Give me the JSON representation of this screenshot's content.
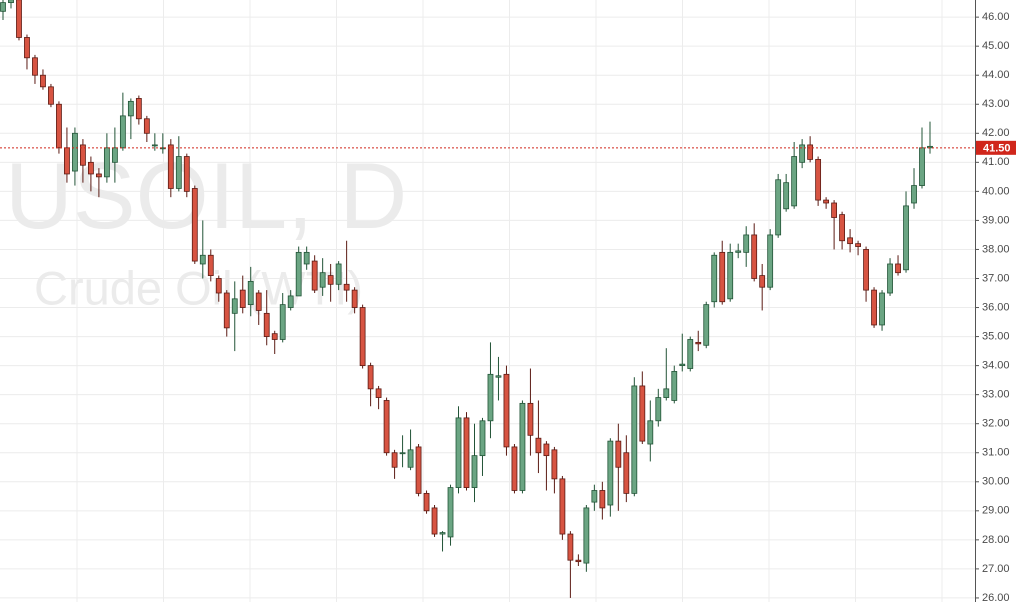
{
  "chart_data": {
    "type": "candlestick",
    "watermark": "USOIL, D",
    "watermark_subtitle": "Crude Oil (WTI)",
    "up_color": "#6ba583",
    "up_border": "#225437",
    "down_color": "#d75442",
    "down_border": "#5b1a13",
    "grid": true,
    "ylim": [
      25.86,
      46.59
    ],
    "yticks": [
      {
        "value": 26,
        "label": "26.00"
      },
      {
        "value": 27,
        "label": "27.00"
      },
      {
        "value": 28,
        "label": "28.00"
      },
      {
        "value": 29,
        "label": "29.00"
      },
      {
        "value": 30,
        "label": "30.00"
      },
      {
        "value": 31,
        "label": "31.00"
      },
      {
        "value": 32,
        "label": "32.00"
      },
      {
        "value": 33,
        "label": "33.00"
      },
      {
        "value": 34,
        "label": "34.00"
      },
      {
        "value": 35,
        "label": "35.00"
      },
      {
        "value": 36,
        "label": "36.00"
      },
      {
        "value": 37,
        "label": "37.00"
      },
      {
        "value": 38,
        "label": "38.00"
      },
      {
        "value": 39,
        "label": "39.00"
      },
      {
        "value": 40,
        "label": "40.00"
      },
      {
        "value": 41,
        "label": "41.00"
      },
      {
        "value": 42,
        "label": "42.00"
      },
      {
        "value": 43,
        "label": "43.00"
      },
      {
        "value": 44,
        "label": "44.00"
      },
      {
        "value": 45,
        "label": "45.00"
      },
      {
        "value": 46,
        "label": "46.00"
      }
    ],
    "price_line": {
      "value": 41.5,
      "label": "41.50",
      "color": "#d0261b"
    },
    "series": [
      {
        "name": "USOIL",
        "open": [
          46.2,
          46.5,
          46.6,
          45.3,
          44.6,
          44.0,
          43.6,
          43.0,
          41.5,
          40.7,
          41.6,
          41.0,
          40.6,
          40.5,
          41.0,
          41.5,
          42.6,
          43.2,
          42.5,
          41.6,
          41.5,
          41.6,
          40.1,
          41.2,
          40.1,
          37.5,
          37.8,
          37.0,
          36.5,
          35.8,
          36.6,
          36.1,
          36.5,
          35.8,
          35.1,
          34.9,
          36.0,
          36.4,
          37.5,
          37.6,
          36.7,
          37.1,
          36.8,
          36.8,
          36.6,
          36.0,
          34.0,
          33.2,
          32.8,
          31.0,
          31.0,
          30.5,
          31.2,
          29.6,
          29.1,
          28.2,
          28.1,
          29.8,
          32.2,
          29.8,
          30.9,
          32.1,
          33.6,
          33.7,
          31.2,
          29.7,
          32.7,
          31.5,
          31.3,
          31.1,
          30.1,
          28.2,
          27.3,
          27.2,
          29.3,
          29.7,
          29.2,
          31.4,
          31.0,
          29.6,
          33.3,
          31.3,
          32.1,
          32.9,
          32.8,
          34.0,
          33.9,
          34.8,
          34.7,
          36.2,
          37.9,
          36.3,
          37.9,
          37.9,
          38.5,
          37.1,
          36.7,
          38.5,
          39.4,
          39.5,
          41.0,
          41.6,
          41.1,
          39.7,
          39.6,
          39.2,
          38.4,
          38.2,
          38.0,
          36.6,
          35.4,
          36.5,
          37.5,
          37.3,
          39.6,
          40.2,
          41.5
        ],
        "high": [
          46.6,
          46.7,
          46.8,
          45.4,
          44.7,
          44.2,
          43.7,
          43.1,
          42.2,
          42.2,
          41.8,
          41.2,
          40.8,
          42.0,
          42.2,
          43.4,
          43.2,
          43.3,
          42.6,
          42.0,
          42.0,
          41.8,
          41.9,
          41.3,
          40.2,
          39.0,
          38.0,
          37.1,
          36.6,
          36.9,
          37.1,
          37.4,
          36.6,
          36.6,
          35.2,
          36.5,
          36.6,
          38.1,
          38.1,
          37.8,
          37.7,
          37.5,
          37.6,
          38.3,
          36.7,
          36.1,
          34.1,
          33.3,
          32.9,
          31.1,
          31.6,
          31.8,
          31.3,
          29.7,
          29.2,
          28.3,
          29.9,
          32.6,
          32.4,
          32.0,
          32.2,
          34.8,
          34.3,
          34.0,
          31.3,
          32.8,
          33.9,
          32.8,
          31.4,
          31.2,
          30.2,
          28.3,
          27.5,
          29.2,
          29.9,
          30.0,
          31.5,
          32.0,
          31.6,
          33.6,
          33.8,
          32.8,
          33.2,
          34.6,
          34.0,
          35.1,
          35.0,
          35.2,
          36.2,
          37.9,
          38.3,
          38.2,
          38.2,
          38.8,
          38.9,
          37.5,
          38.7,
          40.6,
          40.6,
          41.7,
          41.8,
          41.9,
          41.2,
          39.8,
          39.7,
          39.3,
          38.7,
          38.3,
          38.1,
          36.7,
          36.6,
          37.7,
          37.8,
          40.0,
          40.8,
          42.2,
          42.4
        ],
        "low": [
          45.9,
          46.3,
          45.2,
          44.2,
          43.7,
          43.5,
          42.9,
          41.3,
          40.3,
          40.2,
          40.3,
          40.0,
          39.8,
          40.3,
          40.3,
          41.4,
          41.8,
          42.3,
          41.7,
          41.4,
          41.3,
          39.8,
          40.0,
          39.8,
          37.5,
          37.0,
          36.9,
          36.2,
          35.0,
          34.5,
          35.8,
          35.7,
          35.4,
          34.7,
          34.4,
          34.8,
          35.9,
          36.4,
          37.3,
          36.5,
          36.4,
          36.2,
          36.6,
          36.2,
          35.8,
          33.9,
          32.6,
          32.5,
          30.9,
          30.1,
          30.5,
          30.4,
          29.5,
          28.9,
          28.1,
          27.6,
          27.8,
          29.6,
          29.7,
          29.3,
          30.2,
          31.5,
          32.8,
          30.9,
          29.6,
          29.6,
          30.9,
          30.3,
          29.7,
          29.6,
          28.0,
          26.0,
          27.1,
          26.9,
          29.0,
          28.7,
          28.8,
          29.0,
          29.3,
          29.5,
          31.3,
          30.7,
          31.9,
          32.8,
          32.7,
          33.8,
          33.8,
          34.5,
          34.6,
          36.0,
          36.1,
          36.2,
          37.7,
          37.4,
          36.9,
          35.9,
          36.6,
          38.4,
          39.3,
          39.4,
          40.8,
          41.0,
          39.5,
          39.4,
          38.0,
          38.0,
          37.9,
          37.8,
          36.2,
          35.3,
          35.2,
          36.4,
          37.1,
          37.2,
          39.4,
          40.1,
          41.3
        ],
        "close": [
          46.5,
          46.6,
          45.3,
          44.6,
          44.0,
          43.6,
          43.0,
          41.5,
          40.6,
          42.0,
          40.9,
          40.6,
          40.5,
          41.5,
          41.5,
          42.6,
          43.1,
          42.5,
          42.0,
          41.6,
          41.5,
          40.1,
          41.2,
          40.0,
          37.6,
          37.8,
          37.1,
          36.5,
          35.3,
          36.3,
          36.0,
          36.9,
          35.9,
          35.0,
          34.9,
          36.1,
          36.4,
          37.9,
          37.9,
          36.6,
          37.2,
          36.8,
          37.5,
          36.6,
          36.0,
          34.0,
          33.2,
          32.9,
          31.0,
          30.5,
          31.0,
          31.1,
          29.6,
          29.0,
          28.2,
          28.25,
          29.8,
          32.2,
          29.8,
          30.9,
          32.1,
          33.7,
          33.65,
          31.2,
          29.7,
          32.7,
          31.6,
          31.0,
          30.9,
          30.1,
          28.2,
          27.3,
          27.25,
          29.1,
          29.7,
          29.1,
          31.4,
          30.5,
          29.6,
          33.3,
          31.4,
          32.1,
          32.9,
          33.2,
          33.8,
          34.05,
          34.9,
          34.75,
          36.1,
          37.8,
          36.2,
          37.9,
          37.95,
          38.5,
          37.0,
          36.7,
          38.5,
          40.4,
          40.3,
          41.2,
          41.6,
          41.1,
          39.7,
          39.6,
          39.1,
          38.3,
          38.2,
          38.1,
          36.6,
          35.4,
          36.5,
          37.5,
          37.2,
          39.5,
          40.2,
          41.5,
          41.55
        ]
      }
    ]
  }
}
